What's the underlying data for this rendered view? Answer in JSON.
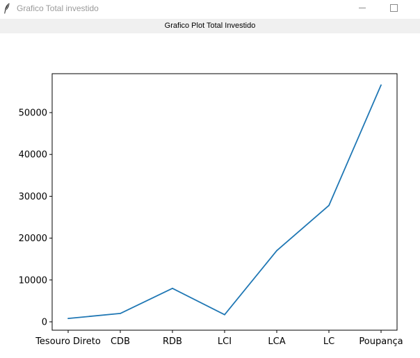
{
  "window": {
    "title": "Grafico Total investido",
    "minimize_label": "—",
    "maximize_label": "☐"
  },
  "header": {
    "label": "Grafico Plot Total Investido"
  },
  "colors": {
    "line": "#1f77b4",
    "axis": "#000000",
    "title_text": "#9a9a9a",
    "bar_bg": "#f0f0f0"
  },
  "icons": {
    "app": "feather-icon",
    "minimize": "minimize-icon",
    "maximize": "maximize-icon"
  },
  "chart_data": {
    "type": "line",
    "title": "",
    "xlabel": "",
    "ylabel": "",
    "categories": [
      "Tesouro Direto",
      "CDB",
      "RDB",
      "LCI",
      "LCA",
      "LC",
      "Poupança"
    ],
    "values": [
      800,
      2000,
      8000,
      1700,
      17000,
      27800,
      56600
    ],
    "ylim": [
      -2000,
      59300
    ],
    "yticks": [
      0,
      10000,
      20000,
      30000,
      40000,
      50000
    ],
    "grid": false,
    "legend": "none"
  }
}
